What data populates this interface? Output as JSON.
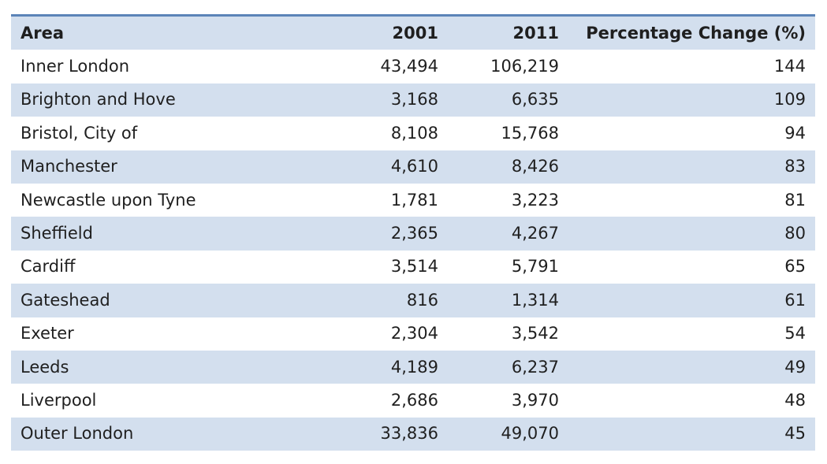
{
  "chart_data": {
    "type": "table",
    "columns": [
      "Area",
      "2001",
      "2011",
      "Percentage Change (%)"
    ],
    "rows": [
      [
        "Inner London",
        "43,494",
        "106,219",
        "144"
      ],
      [
        "Brighton and Hove",
        "3,168",
        "6,635",
        "109"
      ],
      [
        "Bristol, City of",
        "8,108",
        "15,768",
        "94"
      ],
      [
        "Manchester",
        "4,610",
        "8,426",
        "83"
      ],
      [
        "Newcastle upon Tyne",
        "1,781",
        "3,223",
        "81"
      ],
      [
        "Sheffield",
        "2,365",
        "4,267",
        "80"
      ],
      [
        "Cardiff",
        "3,514",
        "5,791",
        "65"
      ],
      [
        "Gateshead",
        "816",
        "1,314",
        "61"
      ],
      [
        "Exeter",
        "2,304",
        "3,542",
        "54"
      ],
      [
        "Leeds",
        "4,189",
        "6,237",
        "49"
      ],
      [
        "Liverpool",
        "2,686",
        "3,970",
        "48"
      ],
      [
        "Outer London",
        "33,836",
        "49,070",
        "45"
      ]
    ]
  },
  "colors": {
    "header_rule": "#5b84b8",
    "band": "#d3dfee",
    "text": "#1f1f1f"
  }
}
